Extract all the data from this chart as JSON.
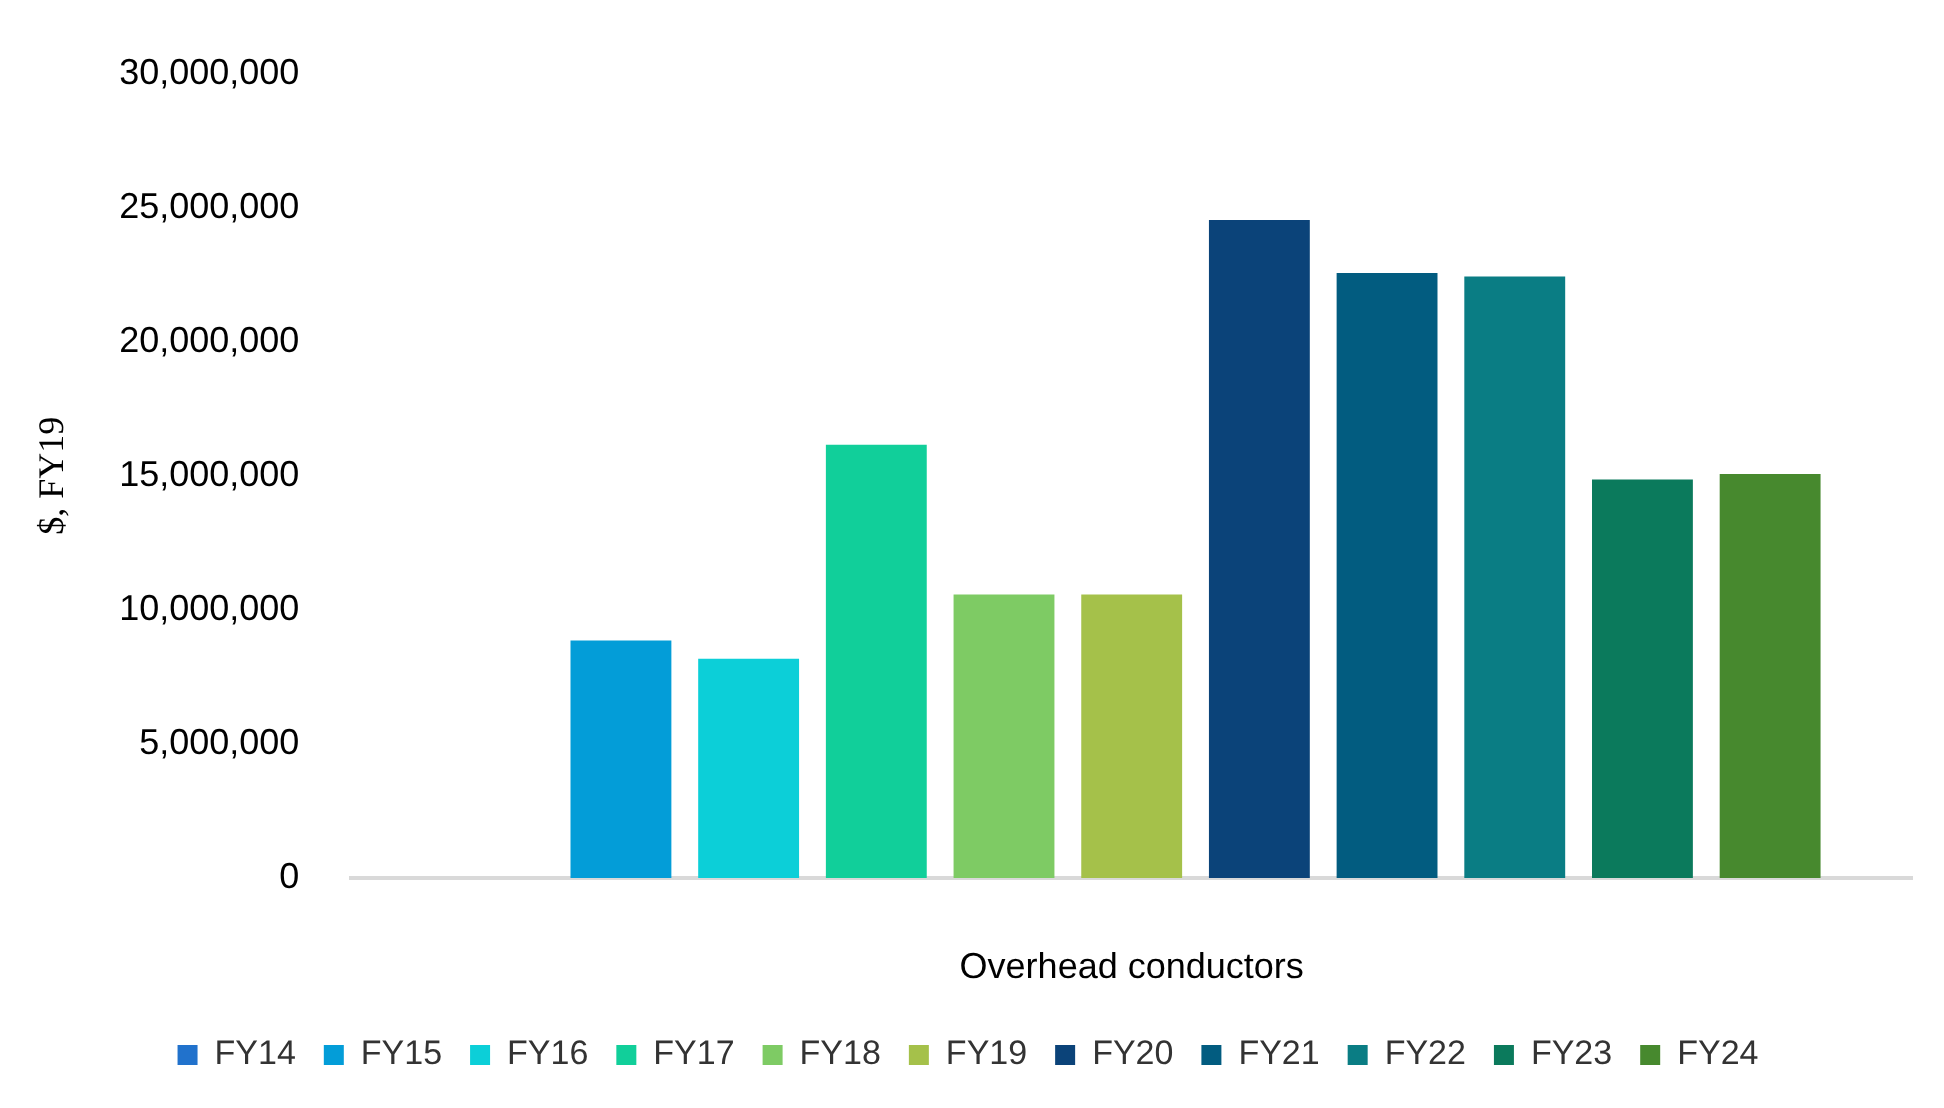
{
  "chart_data": {
    "type": "bar",
    "ylabel": "$, FY19",
    "xlabel": "Overhead conductors",
    "categories": [
      null
    ],
    "series": [
      {
        "name": "FY14",
        "color": "#2172cc",
        "values": [
          null
        ]
      },
      {
        "name": "FY15",
        "color": "#039dd8",
        "values": [
          8860000
        ]
      },
      {
        "name": "FY16",
        "color": "#0ccfd8",
        "values": [
          8180000
        ]
      },
      {
        "name": "FY17",
        "color": "#11cf9a",
        "values": [
          16160000
        ]
      },
      {
        "name": "FY18",
        "color": "#7ecb64",
        "values": [
          10570000
        ]
      },
      {
        "name": "FY19",
        "color": "#a5c14a",
        "values": [
          10570000
        ]
      },
      {
        "name": "FY20",
        "color": "#0b4379",
        "values": [
          24540000
        ]
      },
      {
        "name": "FY21",
        "color": "#025c80",
        "values": [
          22560000
        ]
      },
      {
        "name": "FY22",
        "color": "#0a7d84",
        "values": [
          22430000
        ]
      },
      {
        "name": "FY23",
        "color": "#0b7a5c",
        "values": [
          14860000
        ]
      },
      {
        "name": "FY24",
        "color": "#47892e",
        "values": [
          15070000
        ]
      }
    ],
    "ylim": [
      0,
      30000000
    ],
    "yticks": [
      {
        "value": 0,
        "label": "0"
      },
      {
        "value": 5000000,
        "label": "5,000,000"
      },
      {
        "value": 10000000,
        "label": "10,000,000"
      },
      {
        "value": 15000000,
        "label": "15,000,000"
      },
      {
        "value": 20000000,
        "label": "20,000,000"
      },
      {
        "value": 25000000,
        "label": "25,000,000"
      },
      {
        "value": 30000000,
        "label": "30,000,000"
      }
    ],
    "grid": false,
    "legend": "bottom"
  }
}
